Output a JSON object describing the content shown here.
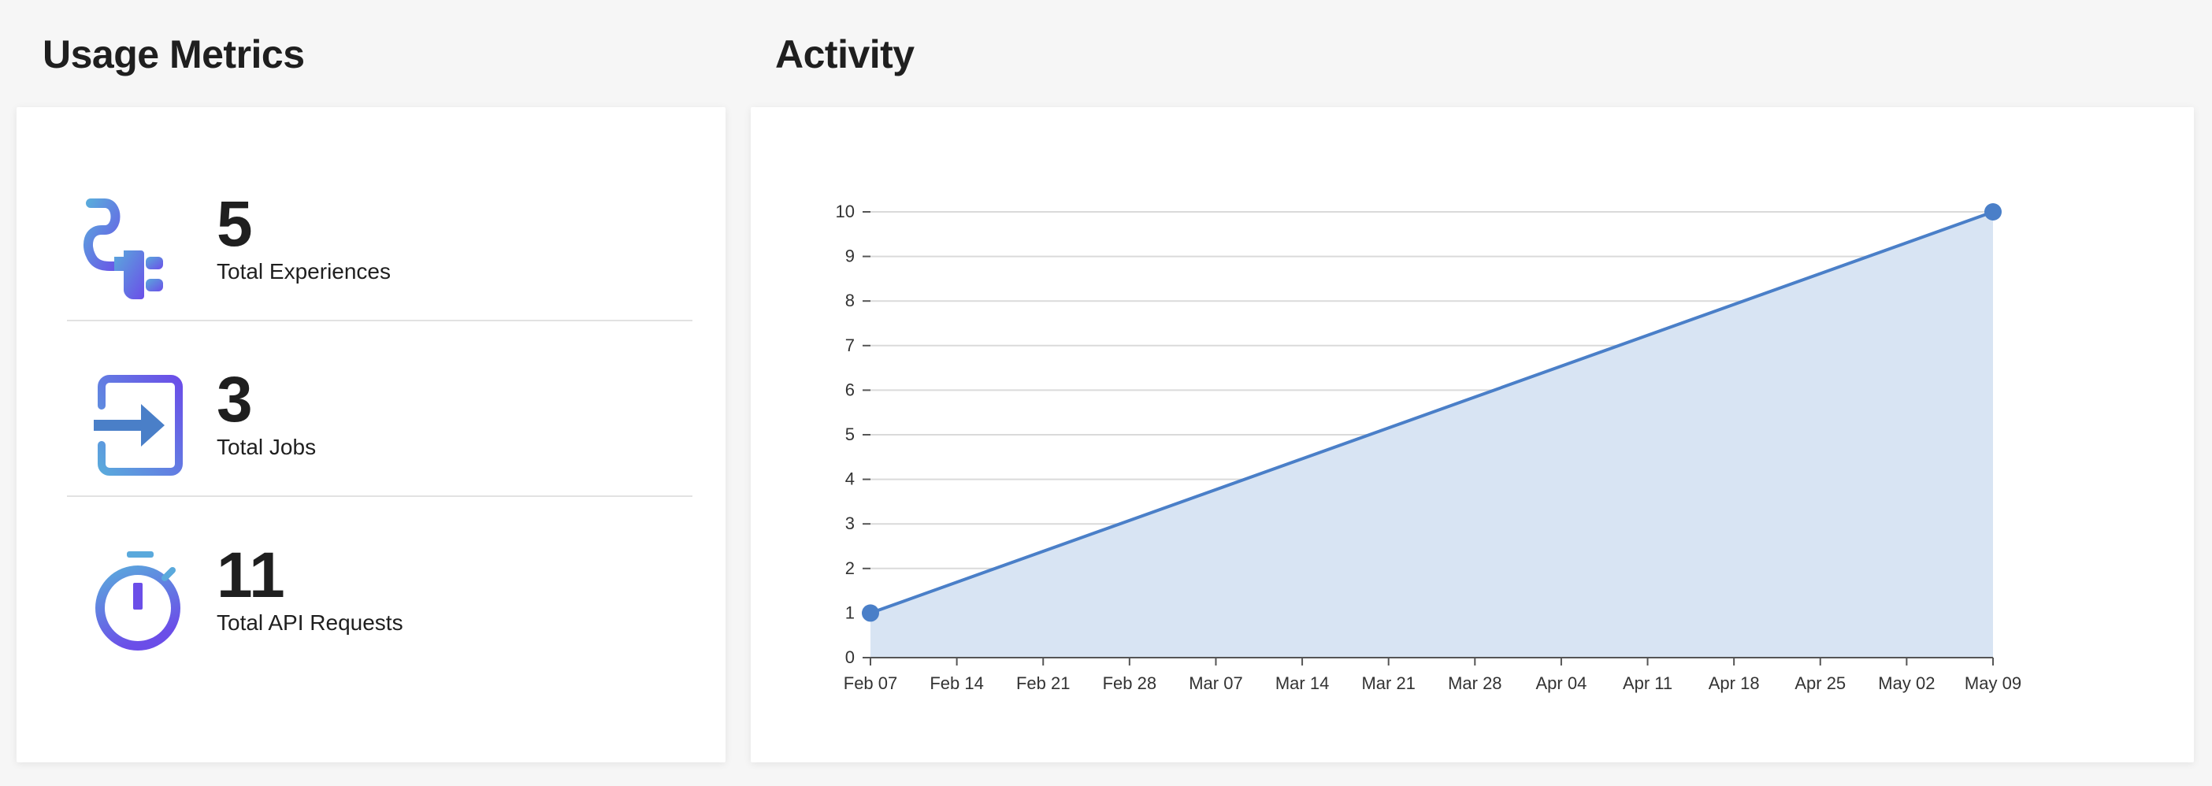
{
  "usage": {
    "title": "Usage Metrics",
    "metrics": [
      {
        "value": "5",
        "label": "Total Experiences",
        "icon": "plug-icon"
      },
      {
        "value": "3",
        "label": "Total Jobs",
        "icon": "enter-arrow-icon"
      },
      {
        "value": "11",
        "label": "Total API Requests",
        "icon": "stopwatch-icon"
      }
    ]
  },
  "activity": {
    "title": "Activity"
  },
  "colors": {
    "accent_start": "#5aa9dc",
    "accent_end": "#6b4ee8",
    "line": "#4a7fc8",
    "area": "#d8e4f3",
    "grid": "#dadada"
  },
  "chart_data": {
    "type": "area",
    "x": [
      "Feb 07",
      "May 09"
    ],
    "values": [
      1,
      10
    ],
    "x_ticks": [
      "Feb 07",
      "Feb 14",
      "Feb 21",
      "Feb 28",
      "Mar 07",
      "Mar 14",
      "Mar 21",
      "Mar 28",
      "Apr 04",
      "Apr 11",
      "Apr 18",
      "Apr 25",
      "May 02",
      "May 09"
    ],
    "y_ticks": [
      0,
      1,
      2,
      3,
      4,
      5,
      6,
      7,
      8,
      9,
      10
    ],
    "ylim": [
      0,
      10
    ],
    "grid": true,
    "legend": "none",
    "title": "",
    "xlabel": "",
    "ylabel": ""
  }
}
